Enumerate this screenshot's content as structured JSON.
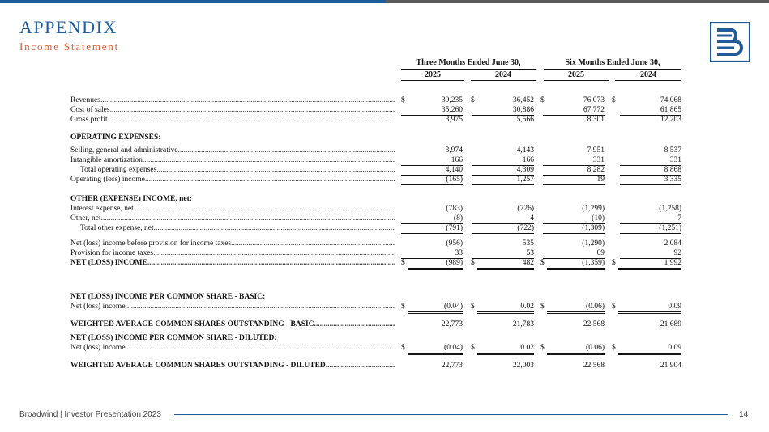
{
  "header": {
    "title": "APPENDIX",
    "subtitle": "Income Statement"
  },
  "colors": {
    "primary_blue": "#1f5c99",
    "accent_orange": "#e05a2a",
    "gray_bar": "#5b5b5b"
  },
  "table": {
    "period_headers": [
      "Three Months Ended June 30,",
      "Six Months Ended June 30,"
    ],
    "year_headers": [
      "2025",
      "2024",
      "2025",
      "2024"
    ],
    "rows": [
      {
        "type": "data",
        "label": "Revenues",
        "dollar": true,
        "values": [
          "39,235",
          "36,452",
          "76,073",
          "74,068"
        ]
      },
      {
        "type": "data",
        "label": "Cost of sales",
        "values": [
          "35,260",
          "30,886",
          "67,772",
          "61,865"
        ],
        "ul": true
      },
      {
        "type": "data",
        "label": "Gross profit",
        "values": [
          "3,975",
          "5,566",
          "8,301",
          "12,203"
        ]
      },
      {
        "type": "section",
        "label": "OPERATING EXPENSES:"
      },
      {
        "type": "data",
        "label": "Selling, general and administrative",
        "values": [
          "3,974",
          "4,143",
          "7,951",
          "8,537"
        ]
      },
      {
        "type": "data",
        "label": "Intangible amortization",
        "values": [
          "166",
          "166",
          "331",
          "331"
        ],
        "ul": true
      },
      {
        "type": "data",
        "label": "Total operating expenses",
        "indent": true,
        "values": [
          "4,140",
          "4,309",
          "8,282",
          "8,868"
        ],
        "ul": true
      },
      {
        "type": "data",
        "label": "Operating (loss) income",
        "values": [
          "(165)",
          "1,257",
          "19",
          "3,335"
        ],
        "ul": true
      },
      {
        "type": "section",
        "label": "OTHER (EXPENSE) INCOME, net:"
      },
      {
        "type": "data",
        "label": "Interest expense, net",
        "values": [
          "(783)",
          "(726)",
          "(1,299)",
          "(1,258)"
        ]
      },
      {
        "type": "data",
        "label": "Other, net",
        "values": [
          "(8)",
          "4",
          "(10)",
          "7"
        ],
        "ul": true
      },
      {
        "type": "data",
        "label": "Total other expense, net",
        "indent": true,
        "values": [
          "(791)",
          "(722)",
          "(1,309)",
          "(1,251)"
        ],
        "ul": true
      },
      {
        "type": "data",
        "label": "Net (loss) income before provision for income taxes",
        "values": [
          "(956)",
          "535",
          "(1,290)",
          "2,084"
        ]
      },
      {
        "type": "data",
        "label": "Provision for income taxes",
        "values": [
          "33",
          "53",
          "69",
          "92"
        ],
        "ul": true
      },
      {
        "type": "data",
        "label": "NET (LOSS) INCOME",
        "bold": true,
        "dollar": true,
        "values": [
          "(989)",
          "482",
          "(1,359)",
          "1,992"
        ],
        "dul": true
      },
      {
        "type": "section",
        "label": "NET (LOSS) INCOME PER COMMON SHARE - BASIC:"
      },
      {
        "type": "data",
        "label": "Net (loss) income",
        "dollar": true,
        "values": [
          "(0.04)",
          "0.02",
          "(0.06)",
          "0.09"
        ],
        "dul": true
      },
      {
        "type": "data",
        "label": "WEIGHTED AVERAGE COMMON SHARES OUTSTANDING - BASIC",
        "bold": true,
        "values": [
          "22,773",
          "21,783",
          "22,568",
          "21,689"
        ]
      },
      {
        "type": "section",
        "label": "NET (LOSS) INCOME PER COMMON SHARE - DILUTED:"
      },
      {
        "type": "data",
        "label": "Net (loss) income",
        "dollar": true,
        "values": [
          "(0.04)",
          "0.02",
          "(0.06)",
          "0.09"
        ],
        "dul": true
      },
      {
        "type": "data",
        "label": "WEIGHTED AVERAGE COMMON SHARES OUTSTANDING - DILUTED",
        "bold": true,
        "values": [
          "22,773",
          "22,003",
          "22,568",
          "21,904"
        ]
      }
    ]
  },
  "footer": {
    "text": "Broadwind | Investor Presentation 2023",
    "page": "14"
  },
  "icons": {
    "logo": "broadwind-logo-icon"
  }
}
